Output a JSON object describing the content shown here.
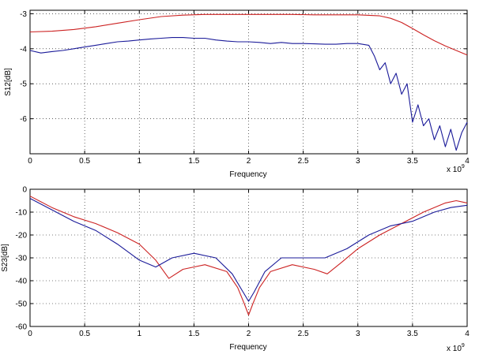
{
  "chart_data": [
    {
      "type": "line",
      "xlabel": "Frequency",
      "ylabel": "S12[dB]",
      "x_exponent_label": "x 10",
      "x_exponent_power": "9",
      "xlim": [
        0,
        4
      ],
      "ylim": [
        -7,
        -2.9
      ],
      "xticks": [
        0,
        0.5,
        1,
        1.5,
        2,
        2.5,
        3,
        3.5,
        4
      ],
      "xtick_labels": [
        "0",
        "0.5",
        "1",
        "1.5",
        "2",
        "2.5",
        "3",
        "3.5",
        "4"
      ],
      "yticks": [
        -6,
        -5,
        -4,
        -3
      ],
      "ytick_labels": [
        "-6",
        "-5",
        "-4",
        "-3"
      ],
      "grid": true,
      "series": [
        {
          "color": "#cc2222",
          "x": [
            0,
            0.2,
            0.4,
            0.6,
            0.8,
            1.0,
            1.2,
            1.4,
            1.6,
            1.8,
            2.0,
            2.2,
            2.4,
            2.6,
            2.8,
            3.0,
            3.2,
            3.3,
            3.4,
            3.5,
            3.6,
            3.7,
            3.8,
            3.9,
            4.0
          ],
          "y": [
            -3.52,
            -3.5,
            -3.45,
            -3.37,
            -3.27,
            -3.17,
            -3.08,
            -3.04,
            -3.02,
            -3.02,
            -3.02,
            -3.02,
            -3.02,
            -3.03,
            -3.03,
            -3.03,
            -3.06,
            -3.13,
            -3.25,
            -3.42,
            -3.6,
            -3.77,
            -3.92,
            -4.05,
            -4.18
          ]
        },
        {
          "color": "#1a1a99",
          "x": [
            0,
            0.1,
            0.2,
            0.3,
            0.4,
            0.5,
            0.6,
            0.7,
            0.8,
            0.9,
            1.0,
            1.1,
            1.2,
            1.3,
            1.4,
            1.5,
            1.6,
            1.7,
            1.8,
            1.9,
            2.0,
            2.1,
            2.2,
            2.3,
            2.4,
            2.5,
            2.6,
            2.7,
            2.8,
            2.9,
            3.0,
            3.1,
            3.15,
            3.2,
            3.25,
            3.3,
            3.35,
            3.4,
            3.45,
            3.5,
            3.55,
            3.6,
            3.65,
            3.7,
            3.75,
            3.8,
            3.85,
            3.9,
            3.95,
            4.0
          ],
          "y": [
            -4.05,
            -4.12,
            -4.08,
            -4.05,
            -4.0,
            -3.95,
            -3.9,
            -3.85,
            -3.8,
            -3.78,
            -3.75,
            -3.72,
            -3.7,
            -3.68,
            -3.68,
            -3.7,
            -3.7,
            -3.75,
            -3.78,
            -3.8,
            -3.8,
            -3.82,
            -3.85,
            -3.82,
            -3.85,
            -3.85,
            -3.86,
            -3.87,
            -3.87,
            -3.85,
            -3.85,
            -3.9,
            -4.2,
            -4.6,
            -4.4,
            -5.0,
            -4.7,
            -5.3,
            -5.0,
            -6.1,
            -5.6,
            -6.2,
            -6.0,
            -6.6,
            -6.2,
            -6.8,
            -6.3,
            -6.9,
            -6.4,
            -6.1
          ]
        }
      ]
    },
    {
      "type": "line",
      "xlabel": "Frequency",
      "ylabel": "S23[dB]",
      "x_exponent_label": "x 10",
      "x_exponent_power": "9",
      "xlim": [
        0,
        4
      ],
      "ylim": [
        -60,
        0
      ],
      "xticks": [
        0,
        0.5,
        1,
        1.5,
        2,
        2.5,
        3,
        3.5,
        4
      ],
      "xtick_labels": [
        "0",
        "0.5",
        "1",
        "1.5",
        "2",
        "2.5",
        "3",
        "3.5",
        "4"
      ],
      "yticks": [
        -60,
        -50,
        -40,
        -30,
        -20,
        -10,
        0
      ],
      "ytick_labels": [
        "-60",
        "-50",
        "-40",
        "-30",
        "-20",
        "-10",
        "0"
      ],
      "grid": true,
      "series": [
        {
          "color": "#cc2222",
          "x": [
            0,
            0.2,
            0.4,
            0.6,
            0.8,
            1.0,
            1.15,
            1.27,
            1.4,
            1.6,
            1.8,
            1.9,
            1.96,
            2.0,
            2.04,
            2.1,
            2.2,
            2.4,
            2.6,
            2.72,
            2.85,
            3.0,
            3.2,
            3.4,
            3.6,
            3.8,
            3.9,
            4.0
          ],
          "y": [
            -3,
            -8,
            -12,
            -15,
            -19,
            -24,
            -31,
            -39,
            -35,
            -33,
            -36,
            -43,
            -50,
            -55,
            -50,
            -43,
            -36,
            -33,
            -35,
            -37,
            -32,
            -26,
            -20,
            -15,
            -10,
            -6,
            -5,
            -6
          ]
        },
        {
          "color": "#1a1a99",
          "x": [
            0,
            0.2,
            0.4,
            0.6,
            0.8,
            1.0,
            1.15,
            1.3,
            1.5,
            1.7,
            1.85,
            1.95,
            2.0,
            2.05,
            2.15,
            2.3,
            2.5,
            2.7,
            2.9,
            3.1,
            3.3,
            3.5,
            3.7,
            3.85,
            4.0
          ],
          "y": [
            -4,
            -9,
            -14,
            -18,
            -24,
            -31,
            -34,
            -30,
            -28,
            -30,
            -37,
            -45,
            -49,
            -45,
            -36,
            -30,
            -30,
            -30,
            -26,
            -20,
            -16,
            -14,
            -10,
            -8,
            -7
          ]
        }
      ]
    }
  ]
}
